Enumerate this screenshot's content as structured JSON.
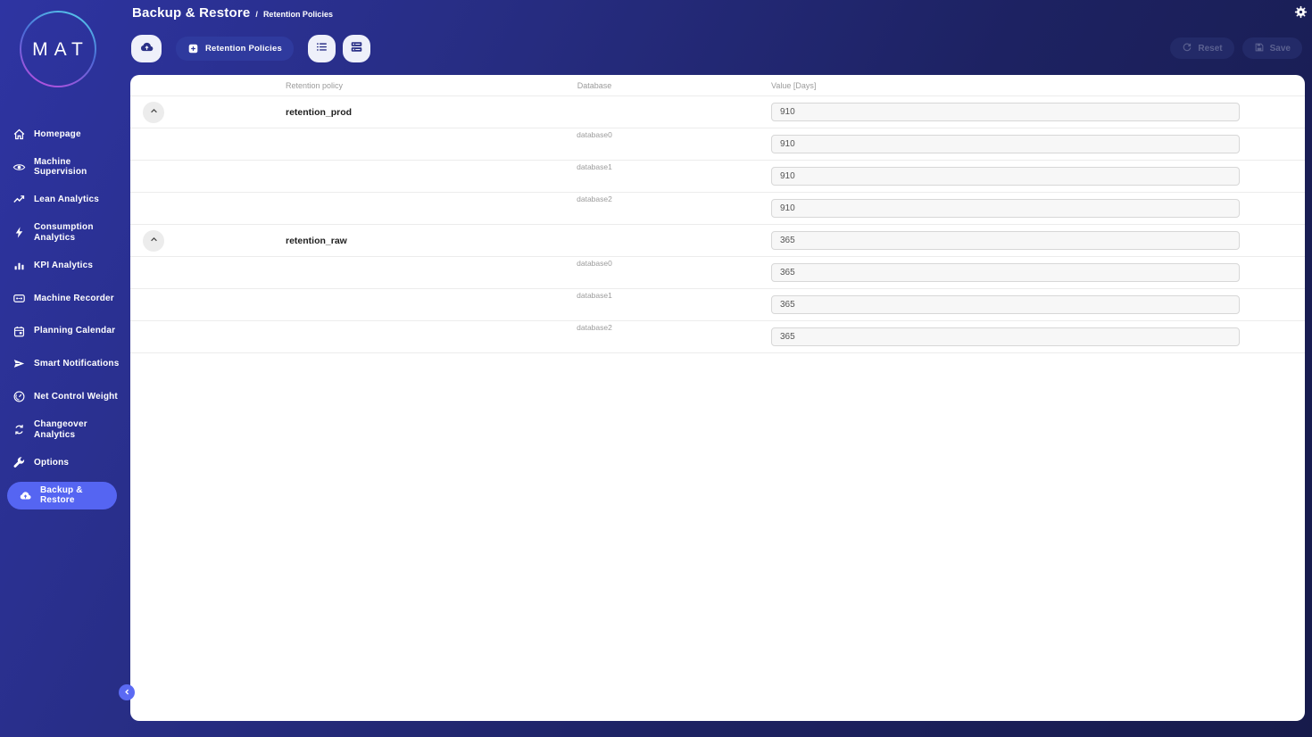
{
  "logo": {
    "text": "MAT"
  },
  "header": {
    "title": "Backup & Restore",
    "separator": "/",
    "breadcrumb": "Retention Policies",
    "settings_icon": "gear"
  },
  "toolbar": {
    "upload_icon": "cloud-upload",
    "policies_button": {
      "label": "Retention Policies",
      "icon": "plus-square"
    },
    "view_buttons": [
      {
        "icon": "list-lines"
      },
      {
        "icon": "list-rows"
      }
    ],
    "reset_button": {
      "label": "Reset",
      "icon": "reset"
    },
    "save_button": {
      "label": "Save",
      "icon": "save"
    }
  },
  "sidebar": {
    "items": [
      {
        "label": "Homepage",
        "icon": "home",
        "active": false
      },
      {
        "label": "Machine Supervision",
        "icon": "eye",
        "active": false
      },
      {
        "label": "Lean Analytics",
        "icon": "trend",
        "active": false
      },
      {
        "label": "Consumption Analytics",
        "icon": "bolt",
        "active": false
      },
      {
        "label": "KPI Analytics",
        "icon": "bars",
        "active": false
      },
      {
        "label": "Machine Recorder",
        "icon": "recorder",
        "active": false
      },
      {
        "label": "Planning Calendar",
        "icon": "calendar",
        "active": false
      },
      {
        "label": "Smart Notifications",
        "icon": "send",
        "active": false
      },
      {
        "label": "Net Control Weight",
        "icon": "weight",
        "active": false
      },
      {
        "label": "Changeover Analytics",
        "icon": "changeover",
        "active": false
      },
      {
        "label": "Options",
        "icon": "wrench",
        "active": false
      },
      {
        "label": "Backup & Restore",
        "icon": "cloud",
        "active": true
      }
    ],
    "collapse_icon": "chevron-left"
  },
  "table": {
    "columns": [
      "Retention policy",
      "Database",
      "Value [Days]"
    ],
    "groups": [
      {
        "name": "retention_prod",
        "value": "910",
        "databases": [
          {
            "name": "database0",
            "value": "910"
          },
          {
            "name": "database1",
            "value": "910"
          },
          {
            "name": "database2",
            "value": "910"
          }
        ]
      },
      {
        "name": "retention_raw",
        "value": "365",
        "databases": [
          {
            "name": "database0",
            "value": "365"
          },
          {
            "name": "database1",
            "value": "365"
          },
          {
            "name": "database2",
            "value": "365"
          }
        ]
      }
    ]
  },
  "colors": {
    "accent": "#5565f2",
    "background_start": "#2e34a2",
    "background_end": "#171b4b",
    "card": "#ffffff",
    "icon_navy": "#2b3187",
    "logo_gradient_top": "#55c3ea",
    "logo_gradient_bottom": "#b152de"
  }
}
